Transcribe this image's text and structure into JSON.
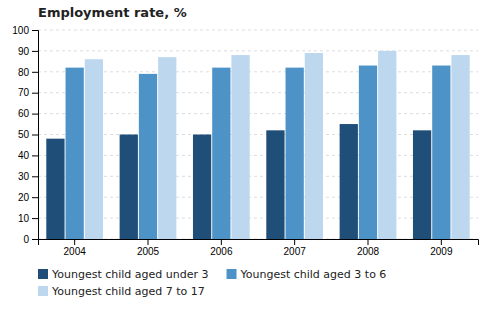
{
  "chart_data": {
    "type": "bar",
    "title": "Employment rate, %",
    "categories": [
      "2004",
      "2005",
      "2006",
      "2007",
      "2008",
      "2009"
    ],
    "series": [
      {
        "name": "Youngest child aged under 3",
        "color": "#1F4E79",
        "values": [
          48,
          50,
          50,
          52,
          55,
          52
        ]
      },
      {
        "name": "Youngest child aged 3 to 6",
        "color": "#4E93C8",
        "values": [
          82,
          79,
          82,
          82,
          83,
          83
        ]
      },
      {
        "name": "Youngest child aged 7 to 17",
        "color": "#BDD7EE",
        "values": [
          86,
          87,
          88,
          89,
          90,
          88
        ]
      }
    ],
    "ylim": [
      0,
      100
    ],
    "yticks": [
      0,
      10,
      20,
      30,
      40,
      50,
      60,
      70,
      80,
      90,
      100
    ],
    "grid": true,
    "legend": "bottom"
  }
}
